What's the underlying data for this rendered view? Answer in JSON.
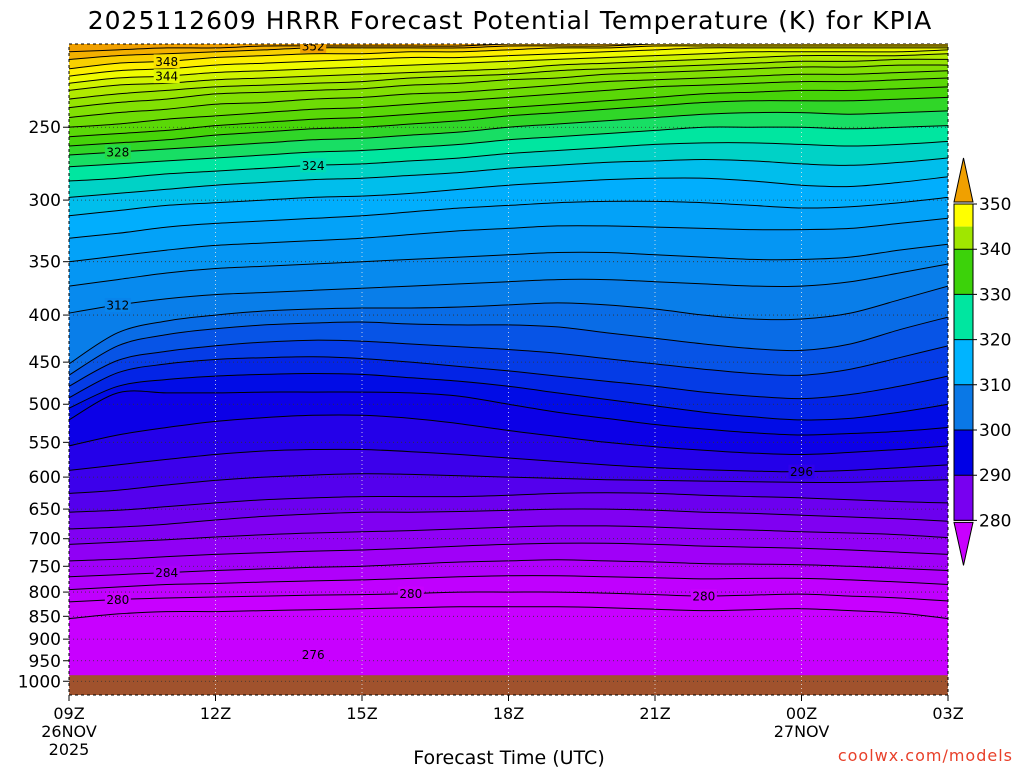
{
  "chart_data": {
    "type": "heatmap",
    "title": "2025112609 HRRR Forecast Potential Temperature (K) for KPIA",
    "xlabel": "Forecast Time (UTC)",
    "ylabel": "",
    "credit": "coolwx.com/models",
    "y_axis": {
      "scale": "log",
      "reversed": true,
      "range": [
        1035,
        203
      ],
      "ticks": [
        250,
        300,
        350,
        400,
        450,
        500,
        550,
        600,
        650,
        700,
        750,
        800,
        850,
        900,
        950,
        1000
      ],
      "grid": "dotted"
    },
    "x_axis": {
      "range_hours": [
        0,
        18
      ],
      "ticks": [
        {
          "hour": 0,
          "label": "09Z",
          "sub1": "26NOV",
          "sub2": "2025"
        },
        {
          "hour": 3,
          "label": "12Z",
          "sub1": "",
          "sub2": ""
        },
        {
          "hour": 6,
          "label": "15Z",
          "sub1": "",
          "sub2": ""
        },
        {
          "hour": 9,
          "label": "18Z",
          "sub1": "",
          "sub2": ""
        },
        {
          "hour": 12,
          "label": "21Z",
          "sub1": "",
          "sub2": ""
        },
        {
          "hour": 15,
          "label": "00Z",
          "sub1": "27NOV",
          "sub2": ""
        },
        {
          "hour": 18,
          "label": "03Z",
          "sub1": "",
          "sub2": ""
        }
      ],
      "grid": "dotted"
    },
    "surface_pressure": 985,
    "hours": [
      0,
      1,
      2,
      3,
      4,
      5,
      6,
      7,
      8,
      9,
      10,
      11,
      12,
      13,
      14,
      15,
      16,
      17,
      18
    ],
    "contour_interval": 2,
    "isentropes": [
      {
        "theta": 278,
        "pressure": [
          855,
          845,
          840,
          840,
          838,
          836,
          834,
          832,
          830,
          830,
          830,
          832,
          835,
          838,
          836,
          834,
          838,
          843,
          855
        ]
      },
      {
        "theta": 280,
        "pressure": [
          820,
          815,
          812,
          810,
          808,
          806,
          805,
          803,
          800,
          800,
          800,
          802,
          805,
          808,
          806,
          804,
          808,
          812,
          818
        ]
      },
      {
        "theta": 282,
        "pressure": [
          795,
          790,
          785,
          783,
          780,
          778,
          776,
          773,
          770,
          768,
          768,
          770,
          772,
          774,
          773,
          773,
          776,
          780,
          785
        ]
      },
      {
        "theta": 284,
        "pressure": [
          770,
          766,
          762,
          758,
          755,
          752,
          750,
          746,
          742,
          740,
          738,
          740,
          742,
          745,
          746,
          747,
          750,
          754,
          758
        ]
      },
      {
        "theta": 286,
        "pressure": [
          740,
          737,
          732,
          728,
          725,
          722,
          720,
          717,
          713,
          710,
          708,
          708,
          710,
          713,
          715,
          717,
          720,
          724,
          728
        ]
      },
      {
        "theta": 288,
        "pressure": [
          710,
          706,
          702,
          697,
          693,
          690,
          688,
          686,
          683,
          680,
          678,
          678,
          680,
          683,
          685,
          688,
          690,
          693,
          698
        ]
      },
      {
        "theta": 290,
        "pressure": [
          683,
          680,
          675,
          668,
          662,
          658,
          655,
          655,
          654,
          652,
          650,
          650,
          652,
          655,
          657,
          660,
          663,
          666,
          670
        ]
      },
      {
        "theta": 292,
        "pressure": [
          655,
          652,
          646,
          640,
          635,
          632,
          630,
          630,
          630,
          628,
          625,
          624,
          625,
          628,
          630,
          632,
          635,
          638,
          640
        ]
      },
      {
        "theta": 294,
        "pressure": [
          625,
          620,
          612,
          605,
          600,
          597,
          595,
          596,
          598,
          600,
          602,
          604,
          605,
          606,
          607,
          608,
          608,
          606,
          604
        ]
      },
      {
        "theta": 296,
        "pressure": [
          590,
          582,
          574,
          567,
          562,
          560,
          560,
          563,
          567,
          572,
          577,
          582,
          586,
          589,
          591,
          592,
          590,
          586,
          582
        ]
      },
      {
        "theta": 298,
        "pressure": [
          555,
          540,
          530,
          522,
          517,
          514,
          514,
          518,
          525,
          534,
          542,
          550,
          556,
          561,
          565,
          567,
          564,
          560,
          555
        ]
      },
      {
        "theta": 300,
        "pressure": [
          520,
          486,
          486,
          486,
          485,
          485,
          485,
          486,
          490,
          500,
          510,
          518,
          526,
          532,
          537,
          540,
          538,
          535,
          530
        ]
      },
      {
        "theta": 302,
        "pressure": [
          505,
          478,
          470,
          466,
          464,
          463,
          464,
          468,
          472,
          478,
          486,
          494,
          502,
          510,
          516,
          520,
          518,
          510,
          500
        ]
      },
      {
        "theta": 304,
        "pressure": [
          492,
          462,
          452,
          447,
          445,
          444,
          446,
          450,
          455,
          460,
          466,
          472,
          478,
          485,
          490,
          493,
          488,
          478,
          466
        ]
      },
      {
        "theta": 306,
        "pressure": [
          478,
          448,
          438,
          432,
          428,
          426,
          427,
          430,
          433,
          436,
          440,
          446,
          452,
          458,
          463,
          465,
          458,
          445,
          432
        ]
      },
      {
        "theta": 308,
        "pressure": [
          465,
          432,
          420,
          414,
          410,
          408,
          407,
          409,
          410,
          410,
          412,
          418,
          424,
          430,
          435,
          437,
          430,
          415,
          402
        ]
      },
      {
        "theta": 310,
        "pressure": [
          452,
          418,
          406,
          400,
          396,
          394,
          393,
          393,
          392,
          390,
          388,
          390,
          394,
          400,
          404,
          404,
          398,
          385,
          372
        ]
      },
      {
        "theta": 312,
        "pressure": [
          398,
          390,
          384,
          380,
          378,
          376,
          374,
          372,
          370,
          368,
          366,
          366,
          368,
          370,
          372,
          372,
          368,
          360,
          352
        ]
      },
      {
        "theta": 314,
        "pressure": [
          372,
          366,
          360,
          356,
          354,
          352,
          350,
          348,
          346,
          344,
          342,
          342,
          344,
          346,
          348,
          348,
          346,
          340,
          335
        ]
      },
      {
        "theta": 316,
        "pressure": [
          350,
          345,
          340,
          336,
          334,
          332,
          330,
          327,
          324,
          322,
          320,
          320,
          321,
          322,
          323,
          323,
          322,
          318,
          314
        ]
      },
      {
        "theta": 318,
        "pressure": [
          330,
          326,
          321,
          318,
          316,
          314,
          312,
          309,
          306,
          304,
          302,
          301,
          301,
          302,
          304,
          306,
          305,
          302,
          298
        ]
      },
      {
        "theta": 320,
        "pressure": [
          312,
          308,
          304,
          302,
          300,
          298,
          297,
          295,
          292,
          289,
          287,
          285,
          284,
          284,
          286,
          289,
          290,
          287,
          283
        ]
      },
      {
        "theta": 322,
        "pressure": [
          298,
          295,
          292,
          289,
          287,
          285,
          284,
          282,
          280,
          277,
          275,
          273,
          272,
          271,
          272,
          274,
          275,
          273,
          270
        ]
      },
      {
        "theta": 324,
        "pressure": [
          286,
          284,
          281,
          279,
          277,
          275,
          274,
          272,
          270,
          267,
          265,
          263,
          261,
          260,
          260,
          261,
          262,
          261,
          259
        ]
      },
      {
        "theta": 326,
        "pressure": [
          276,
          274,
          272,
          270,
          268,
          266,
          265,
          263,
          261,
          258,
          256,
          254,
          252,
          250,
          250,
          250,
          251,
          250,
          249
        ]
      },
      {
        "theta": 328,
        "pressure": [
          268,
          266,
          264,
          262,
          260,
          258,
          257,
          255,
          253,
          250,
          248,
          246,
          244,
          242,
          241,
          241,
          242,
          241,
          240
        ]
      },
      {
        "theta": 330,
        "pressure": [
          262,
          260,
          258,
          255,
          253,
          251,
          250,
          248,
          246,
          243,
          241,
          239,
          237,
          235,
          234,
          234,
          234,
          233,
          232
        ]
      },
      {
        "theta": 332,
        "pressure": [
          256,
          254,
          252,
          249,
          247,
          245,
          244,
          242,
          240,
          238,
          236,
          234,
          232,
          230,
          229,
          228,
          228,
          227,
          226
        ]
      },
      {
        "theta": 334,
        "pressure": [
          250,
          248,
          245,
          243,
          241,
          239,
          238,
          236,
          234,
          232,
          230,
          228,
          226,
          225,
          224,
          223,
          223,
          222,
          221
        ]
      },
      {
        "theta": 336,
        "pressure": [
          244,
          241,
          239,
          236,
          235,
          233,
          232,
          230,
          229,
          227,
          225,
          223,
          222,
          221,
          220,
          219,
          219,
          218,
          217
        ]
      },
      {
        "theta": 338,
        "pressure": [
          238,
          235,
          233,
          230,
          229,
          228,
          227,
          225,
          224,
          222,
          221,
          219,
          218,
          217,
          216,
          215,
          215,
          214,
          214
        ]
      },
      {
        "theta": 340,
        "pressure": [
          233,
          230,
          228,
          226,
          225,
          224,
          223,
          221,
          220,
          219,
          217,
          216,
          215,
          214,
          213,
          212,
          212,
          211,
          211
        ]
      },
      {
        "theta": 342,
        "pressure": [
          228,
          225,
          224,
          222,
          221,
          220,
          219,
          218,
          217,
          216,
          214,
          213,
          212,
          211,
          210,
          209,
          209,
          209,
          208
        ]
      },
      {
        "theta": 344,
        "pressure": [
          224,
          221,
          220,
          218,
          217,
          216,
          215,
          214,
          213,
          212,
          211,
          210,
          209,
          208,
          207,
          207,
          207,
          207,
          206
        ]
      },
      {
        "theta": 346,
        "pressure": [
          220,
          217,
          216,
          214,
          213,
          212,
          211,
          210,
          210,
          209,
          208,
          207,
          206,
          205,
          205,
          205,
          205,
          205,
          205
        ]
      },
      {
        "theta": 348,
        "pressure": [
          216,
          213,
          212,
          210,
          209,
          208,
          208,
          207,
          207,
          206,
          205,
          205,
          204,
          204,
          204,
          204,
          204,
          204,
          204
        ]
      },
      {
        "theta": 350,
        "pressure": [
          211,
          209,
          208,
          207,
          206,
          205,
          205,
          205,
          205,
          204,
          204,
          204,
          203,
          203,
          203,
          203,
          203,
          203,
          203
        ]
      },
      {
        "theta": 352,
        "pressure": [
          207,
          206,
          205,
          205,
          204,
          204,
          204,
          204,
          204,
          203,
          203,
          203,
          203,
          203,
          203,
          203,
          203,
          203,
          203
        ]
      }
    ],
    "contour_labels": [
      {
        "text": "352",
        "hour": 5.0,
        "theta": 352
      },
      {
        "text": "348",
        "hour": 2.0,
        "theta": 348
      },
      {
        "text": "344",
        "hour": 2.0,
        "theta": 344
      },
      {
        "text": "328",
        "hour": 1.0,
        "theta": 328
      },
      {
        "text": "324",
        "hour": 5.0,
        "theta": 324
      },
      {
        "text": "312",
        "hour": 1.0,
        "theta": 312
      },
      {
        "text": "296",
        "hour": 15.0,
        "theta": 296
      },
      {
        "text": "284",
        "hour": 2.0,
        "theta": 284
      },
      {
        "text": "280",
        "hour": 1.0,
        "theta": 280
      },
      {
        "text": "280",
        "hour": 7.0,
        "theta": 280
      },
      {
        "text": "280",
        "hour": 13.0,
        "theta": 280
      },
      {
        "text": "276",
        "hour": 5.0,
        "theta": 276
      }
    ],
    "colorbar": {
      "levels": [
        280,
        290,
        300,
        310,
        320,
        330,
        340,
        350
      ],
      "labels": [
        "280",
        "290",
        "300",
        "310",
        "320",
        "330",
        "340",
        "350"
      ],
      "colors": [
        "#c800ff",
        "#7800f0",
        "#0000e6",
        "#0a78e6",
        "#00b4ff",
        "#00e6a0",
        "#3cd20a",
        "#a0e600",
        "#ffff00",
        "#f0a000"
      ],
      "color_scale": [
        [
          270,
          "#c800ff"
        ],
        [
          280,
          "#c800ff"
        ],
        [
          290,
          "#7800f0"
        ],
        [
          300,
          "#0000e6"
        ],
        [
          310,
          "#0a78e6"
        ],
        [
          320,
          "#00b4ff"
        ],
        [
          325,
          "#00e6a0"
        ],
        [
          330,
          "#3cd20a"
        ],
        [
          340,
          "#a0e600"
        ],
        [
          346,
          "#ffff00"
        ],
        [
          352,
          "#f0a000"
        ],
        [
          360,
          "#f0a000"
        ]
      ]
    },
    "ground_color": "#a0522d"
  }
}
